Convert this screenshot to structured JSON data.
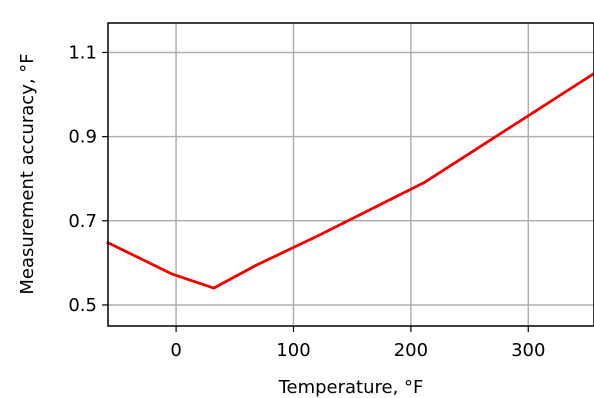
{
  "chart_data": {
    "type": "line",
    "title": "",
    "xlabel": "Temperature, °F",
    "ylabel": "Measurement accuracy, °F",
    "xlim": [
      -58,
      356
    ],
    "ylim": [
      0.45,
      1.17
    ],
    "grid": true,
    "xticks": [
      0,
      100,
      200,
      300
    ],
    "xtick_labels": [
      "0",
      "100",
      "200",
      "300"
    ],
    "yticks": [
      0.5,
      0.7,
      0.9,
      1.1
    ],
    "ytick_labels": [
      "0.5",
      "0.7",
      "0.9",
      "1.1"
    ],
    "series": [
      {
        "color": "#ee0000",
        "x": [
          -58,
          -4,
          32,
          68,
          122,
          212,
          356
        ],
        "y": [
          0.648,
          0.574,
          0.54,
          0.594,
          0.666,
          0.792,
          1.05
        ]
      }
    ]
  }
}
